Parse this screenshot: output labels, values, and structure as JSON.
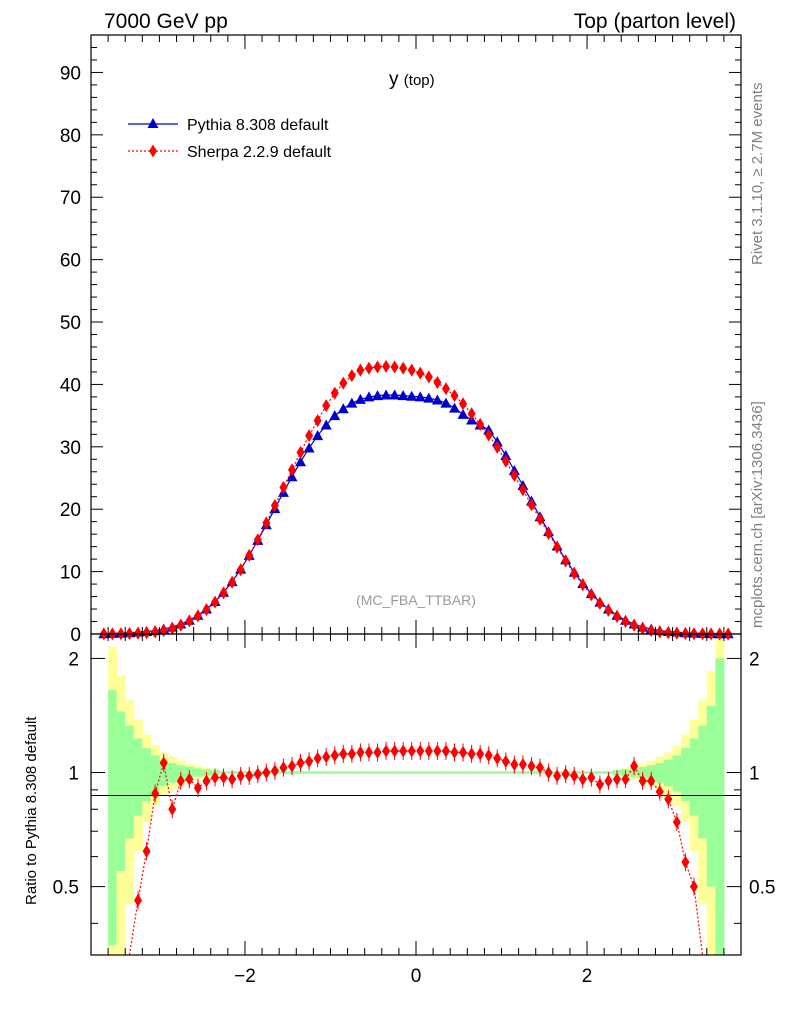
{
  "header": {
    "energy_label": "7000 GeV pp",
    "process_label": "Top (parton level)"
  },
  "side_labels": {
    "rivet": "Rivet 3.1.10, ≥ 2.7M events",
    "mcplots": "mcplots.cern.ch [arXiv:1306.3436]"
  },
  "plot_title": {
    "main": "y",
    "sub": "(top)"
  },
  "analysis_label": "(MC_FBA_TTBAR)",
  "ratio_ylabel": "Ratio to Pythia 8.308 default",
  "colors": {
    "pythia": "#0000cc",
    "sherpa": "#ff0000",
    "band_inner": "#99ff99",
    "band_outer": "#ffff99"
  },
  "chart_data": [
    {
      "type": "line",
      "panel": "main",
      "xlim": [
        -3.8,
        3.8
      ],
      "ylim": [
        0,
        96
      ],
      "yticks": [
        0,
        10,
        20,
        30,
        40,
        50,
        60,
        70,
        80,
        90
      ],
      "ytick_labels": [
        "0",
        "10",
        "20",
        "30",
        "40",
        "50",
        "60",
        "70",
        "80",
        "90"
      ],
      "x": [
        -3.65,
        -3.55,
        -3.45,
        -3.35,
        -3.25,
        -3.15,
        -3.05,
        -2.95,
        -2.85,
        -2.75,
        -2.65,
        -2.55,
        -2.45,
        -2.35,
        -2.25,
        -2.15,
        -2.05,
        -1.95,
        -1.85,
        -1.75,
        -1.65,
        -1.55,
        -1.45,
        -1.35,
        -1.25,
        -1.15,
        -1.05,
        -0.95,
        -0.85,
        -0.75,
        -0.65,
        -0.55,
        -0.45,
        -0.35,
        -0.25,
        -0.15,
        -0.05,
        0.05,
        0.15,
        0.25,
        0.35,
        0.45,
        0.55,
        0.65,
        0.75,
        0.85,
        0.95,
        1.05,
        1.15,
        1.25,
        1.35,
        1.45,
        1.55,
        1.65,
        1.75,
        1.85,
        1.95,
        2.05,
        2.15,
        2.25,
        2.35,
        2.45,
        2.55,
        2.65,
        2.75,
        2.85,
        2.95,
        3.05,
        3.15,
        3.25,
        3.35,
        3.45,
        3.55,
        3.65
      ],
      "series": [
        {
          "name": "Pythia 8.308 default",
          "marker": "triangle",
          "line": "solid",
          "values": [
            0.05,
            0.1,
            0.15,
            0.2,
            0.3,
            0.4,
            0.55,
            0.8,
            1.1,
            1.6,
            2.2,
            3.0,
            4.0,
            5.2,
            6.7,
            8.4,
            10.4,
            12.6,
            15.0,
            17.5,
            20.1,
            22.7,
            25.2,
            27.6,
            29.8,
            31.8,
            33.5,
            35.0,
            36.1,
            37.0,
            37.6,
            38.0,
            38.2,
            38.3,
            38.3,
            38.2,
            38.1,
            38.0,
            37.8,
            37.5,
            37.0,
            36.2,
            35.2,
            34.3,
            33.5,
            32.7,
            30.8,
            28.6,
            26.2,
            23.8,
            21.3,
            18.8,
            16.4,
            14.1,
            11.9,
            9.9,
            8.1,
            6.5,
            5.1,
            4.0,
            3.0,
            2.2,
            1.6,
            1.1,
            0.8,
            0.55,
            0.4,
            0.3,
            0.2,
            0.15,
            0.1,
            0.07,
            0.05,
            0.04
          ]
        },
        {
          "name": "Sherpa 2.2.9 default",
          "marker": "diamond",
          "line": "dotted",
          "values": [
            0.02,
            0.03,
            0.05,
            0.08,
            0.13,
            0.2,
            0.33,
            0.55,
            0.9,
            1.4,
            2.1,
            2.9,
            3.9,
            5.1,
            6.6,
            8.3,
            10.3,
            12.6,
            15.1,
            17.8,
            20.6,
            23.5,
            26.3,
            29.1,
            31.8,
            34.2,
            36.6,
            38.6,
            40.2,
            41.4,
            42.3,
            42.6,
            42.8,
            42.9,
            42.8,
            42.6,
            42.3,
            41.8,
            41.2,
            40.3,
            39.3,
            38.2,
            36.9,
            35.3,
            33.6,
            31.9,
            29.9,
            27.7,
            25.4,
            23.1,
            20.7,
            18.4,
            16.1,
            13.9,
            11.7,
            9.7,
            7.9,
            6.3,
            4.9,
            3.8,
            2.8,
            2.0,
            1.4,
            0.9,
            0.55,
            0.33,
            0.2,
            0.13,
            0.08,
            0.05,
            0.03,
            0.02,
            0.01,
            0.01
          ]
        }
      ]
    },
    {
      "type": "line",
      "panel": "ratio",
      "xlim": [
        -3.8,
        3.8
      ],
      "ylim": [
        0.33,
        2.32
      ],
      "xticks": [
        -2,
        0,
        2
      ],
      "xtick_labels": [
        "−2",
        "0",
        "2"
      ],
      "yticks": [
        0.5,
        1,
        2
      ],
      "ytick_labels": [
        "0.5",
        "1",
        "2"
      ],
      "x": [
        -3.25,
        -3.15,
        -3.05,
        -2.95,
        -2.85,
        -2.75,
        -2.65,
        -2.55,
        -2.45,
        -2.35,
        -2.25,
        -2.15,
        -2.05,
        -1.95,
        -1.85,
        -1.75,
        -1.65,
        -1.55,
        -1.45,
        -1.35,
        -1.25,
        -1.15,
        -1.05,
        -0.95,
        -0.85,
        -0.75,
        -0.65,
        -0.55,
        -0.45,
        -0.35,
        -0.25,
        -0.15,
        -0.05,
        0.05,
        0.15,
        0.25,
        0.35,
        0.45,
        0.55,
        0.65,
        0.75,
        0.85,
        0.95,
        1.05,
        1.15,
        1.25,
        1.35,
        1.45,
        1.55,
        1.65,
        1.75,
        1.85,
        1.95,
        2.05,
        2.15,
        2.25,
        2.35,
        2.45,
        2.55,
        2.65,
        2.75,
        2.85,
        2.95,
        3.05,
        3.15,
        3.25
      ],
      "series": [
        {
          "name": "Sherpa 2.2.9 default",
          "marker": "diamond",
          "line": "dotted",
          "values": [
            0.46,
            0.62,
            0.88,
            1.06,
            0.8,
            0.95,
            0.96,
            0.91,
            0.95,
            0.97,
            0.97,
            0.96,
            0.98,
            0.98,
            0.99,
            1.0,
            1.01,
            1.03,
            1.04,
            1.06,
            1.07,
            1.09,
            1.1,
            1.11,
            1.12,
            1.12,
            1.13,
            1.13,
            1.13,
            1.14,
            1.14,
            1.14,
            1.14,
            1.14,
            1.14,
            1.14,
            1.14,
            1.13,
            1.13,
            1.12,
            1.12,
            1.11,
            1.09,
            1.07,
            1.05,
            1.05,
            1.04,
            1.03,
            1.0,
            0.98,
            0.99,
            0.98,
            0.96,
            0.97,
            0.93,
            0.95,
            0.96,
            0.96,
            1.04,
            0.95,
            0.95,
            0.89,
            0.85,
            0.74,
            0.58,
            0.5
          ]
        }
      ],
      "band_x_edges": [
        -3.6,
        -3.5,
        -3.4,
        -3.3,
        -3.2,
        -3.1,
        -3.0,
        -2.9,
        -2.8,
        -2.7,
        -2.6,
        -2.5,
        -2.4,
        -2.3,
        2.3,
        2.4,
        2.5,
        2.6,
        2.7,
        2.8,
        2.9,
        3.0,
        3.1,
        3.2,
        3.3,
        3.4,
        3.5,
        3.6
      ],
      "band_inner_halfwidth": [
        0.65,
        0.45,
        0.33,
        0.23,
        0.16,
        0.11,
        0.08,
        0.06,
        0.045,
        0.035,
        0.025,
        0.02,
        0.015,
        0.01,
        0.015,
        0.02,
        0.025,
        0.035,
        0.045,
        0.06,
        0.08,
        0.11,
        0.16,
        0.23,
        0.33,
        0.5,
        1.0
      ],
      "band_outer_halfwidth": [
        1.15,
        0.8,
        0.55,
        0.38,
        0.26,
        0.18,
        0.13,
        0.1,
        0.075,
        0.055,
        0.04,
        0.03,
        0.02,
        0.015,
        0.02,
        0.03,
        0.04,
        0.055,
        0.075,
        0.1,
        0.13,
        0.18,
        0.26,
        0.38,
        0.55,
        0.85,
        1.4
      ]
    }
  ]
}
